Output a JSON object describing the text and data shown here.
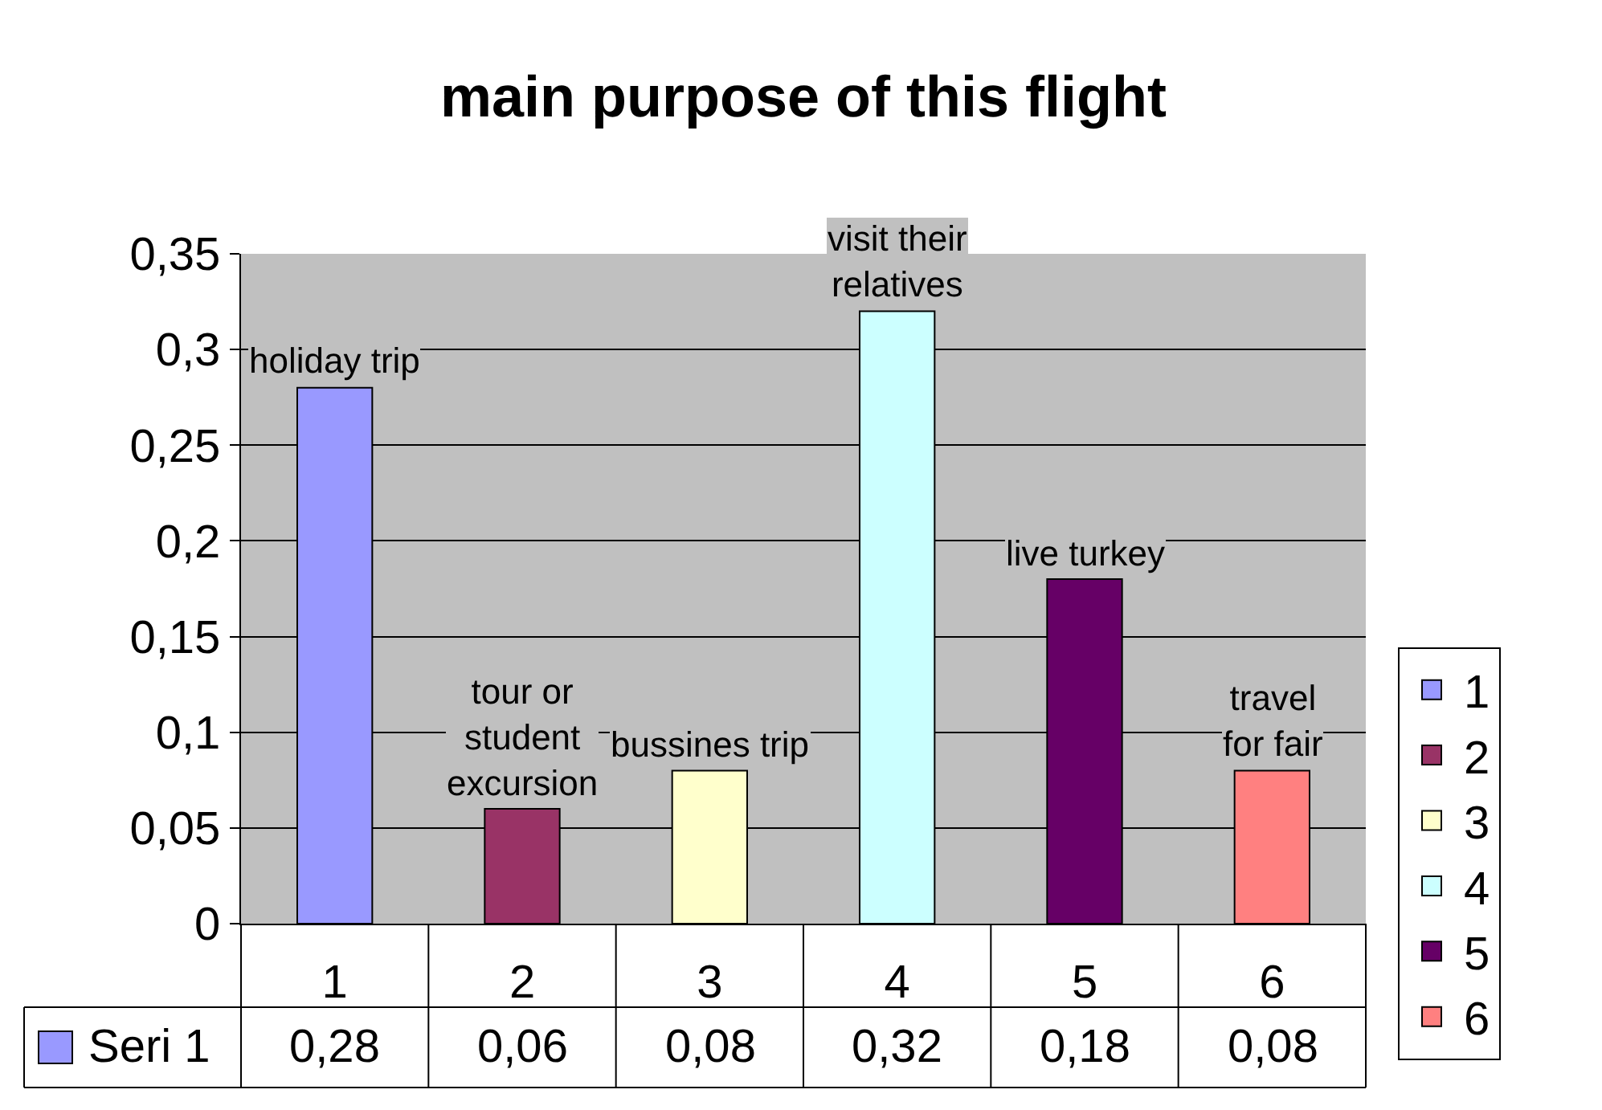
{
  "chart_data": {
    "type": "bar",
    "title": "main purpose of this flight",
    "categories": [
      "1",
      "2",
      "3",
      "4",
      "5",
      "6"
    ],
    "series": [
      {
        "name": "Seri 1",
        "values": [
          0.28,
          0.06,
          0.08,
          0.32,
          0.18,
          0.08
        ],
        "colors": [
          "#9999ff",
          "#993366",
          "#ffffcc",
          "#ccffff",
          "#660066",
          "#ff8080"
        ],
        "value_labels": [
          "0,28",
          "0,06",
          "0,08",
          "0,32",
          "0,18",
          "0,08"
        ]
      }
    ],
    "ylim": [
      0,
      0.35
    ],
    "yticks": [
      0,
      {
        "value": 0.05,
        "label": "0,05"
      },
      {
        "value": 0.1,
        "label": "0,1"
      },
      {
        "value": 0.15,
        "label": "0,15"
      },
      {
        "value": 0.2,
        "label": "0,2"
      },
      {
        "value": 0.25,
        "label": "0,25"
      },
      {
        "value": 0.3,
        "label": "0,3"
      },
      {
        "value": 0.35,
        "label": "0,35"
      }
    ],
    "grid": "y",
    "legend": "bottom left",
    "annotations": [
      {
        "text": "holiday trip",
        "x": "1",
        "y": 0.28
      },
      {
        "text": "tour or\nstudent\nexcursion",
        "x": "2",
        "y": 0.06
      },
      {
        "text": "bussines trip",
        "x": "3",
        "y": 0.08
      },
      {
        "text": "visit their\nrelatives",
        "x": "4",
        "y": 0.32
      },
      {
        "text": "live turkey",
        "x": "5",
        "y": 0.18
      },
      {
        "text": "travel\nfor fair",
        "x": "6",
        "y": 0.08
      }
    ]
  }
}
